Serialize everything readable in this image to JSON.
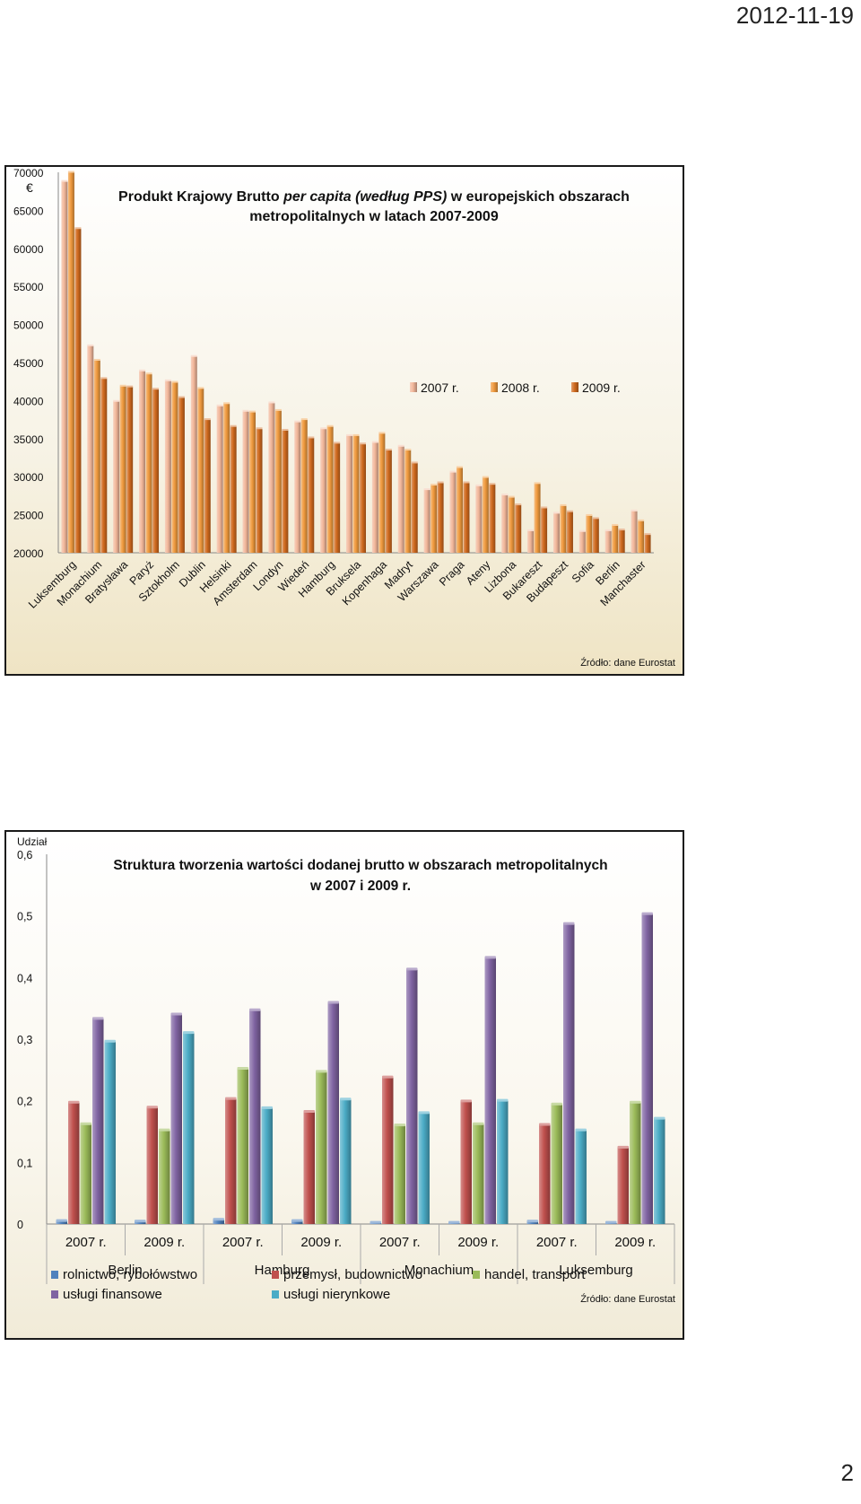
{
  "page": {
    "date": "2012-11-19",
    "number": "2"
  },
  "charts": [
    {
      "id": "gdp-chart",
      "chart_data": {
        "type": "bar",
        "title_parts": [
          "Produkt Krajowy Brutto ",
          "per capita (według PPS)",
          " w europejskich obszarach",
          "metropolitalnych w latach 2007-2009"
        ],
        "ylabel": "€",
        "xlabel": "",
        "ylim": [
          20000,
          70000
        ],
        "yticks": [
          20000,
          25000,
          30000,
          35000,
          40000,
          45000,
          50000,
          55000,
          60000,
          65000,
          70000
        ],
        "grid": false,
        "legend_position": "right",
        "categories": [
          "Luksemburg",
          "Monachium",
          "Bratysława",
          "Paryż",
          "Sztokholm",
          "Dublin",
          "Helsinki",
          "Amsterdam",
          "Londyn",
          "Wiedeń",
          "Hamburg",
          "Bruksela",
          "Kopenhaga",
          "Madryt",
          "Warszawa",
          "Praga",
          "Ateny",
          "Lizbona",
          "Bukareszt",
          "Budapeszt",
          "Sofia",
          "Berlin",
          "Manchaster"
        ],
        "series": [
          {
            "name": "2007 r.",
            "color": "#f2b79a",
            "values": [
              68800,
              47200,
              39900,
              43900,
              42600,
              45800,
              39300,
              38600,
              39700,
              37200,
              36300,
              35400,
              34500,
              34000,
              28300,
              30600,
              28800,
              27600,
              22900,
              25200,
              22800,
              22900,
              25500
            ]
          },
          {
            "name": "2008 r.",
            "color": "#f09a3e",
            "values": [
              70000,
              45300,
              41900,
              43500,
              42400,
              41600,
              39600,
              38500,
              38700,
              37500,
              36600,
              35400,
              35700,
              33500,
              28900,
              31200,
              29900,
              27300,
              29100,
              26200,
              24900,
              23600,
              24200
            ]
          },
          {
            "name": "2009 r.",
            "color": "#d06a1e",
            "values": [
              62600,
              42900,
              41800,
              41500,
              40400,
              37500,
              36600,
              36300,
              36100,
              35100,
              34400,
              34300,
              33500,
              31800,
              29200,
              29200,
              29000,
              26300,
              25900,
              25400,
              24500,
              23000,
              22400
            ]
          }
        ],
        "source": "Źródło: dane Eurostat"
      }
    },
    {
      "id": "gva-chart",
      "chart_data": {
        "type": "bar",
        "title_parts": [
          "Struktura tworzenia wartości dodanej brutto w obszarach metropolitalnych",
          "w 2007 i 2009 r."
        ],
        "ylabel": "Udział",
        "xlabel": "",
        "ylim": [
          0,
          0.6
        ],
        "yticks": [
          "0",
          "0,1",
          "0,2",
          "0,3",
          "0,4",
          "0,5",
          "0,6"
        ],
        "grid": false,
        "legend_position": "bottom",
        "categories": [
          "2007 r.",
          "2009 r.",
          "2007 r.",
          "2009 r.",
          "2007 r.",
          "2009 r.",
          "2007 r.",
          "2009 r."
        ],
        "groups": [
          "Berlin",
          "Hamburg",
          "Monachium",
          "Luksemburg"
        ],
        "series": [
          {
            "name": "rolnictwo, rybołówstwo",
            "color": "#4f81bd",
            "values": [
              0.005,
              0.004,
              0.007,
              0.005,
              0.002,
              0.002,
              0.004,
              0.002
            ]
          },
          {
            "name": "przemysł, budownictwo",
            "color": "#c0504d",
            "values": [
              0.197,
              0.189,
              0.203,
              0.182,
              0.238,
              0.199,
              0.161,
              0.124
            ]
          },
          {
            "name": "handel, transport",
            "color": "#9bbb59",
            "values": [
              0.162,
              0.152,
              0.252,
              0.247,
              0.16,
              0.162,
              0.194,
              0.197
            ]
          },
          {
            "name": "usługi finansowe",
            "color": "#8064a2",
            "values": [
              0.333,
              0.34,
              0.347,
              0.359,
              0.413,
              0.432,
              0.487,
              0.503
            ]
          },
          {
            "name": "usługi nierynkowe",
            "color": "#4bacc6",
            "values": [
              0.296,
              0.31,
              0.188,
              0.202,
              0.18,
              0.2,
              0.152,
              0.171
            ]
          }
        ],
        "source": "Źródło: dane Eurostat"
      }
    }
  ]
}
